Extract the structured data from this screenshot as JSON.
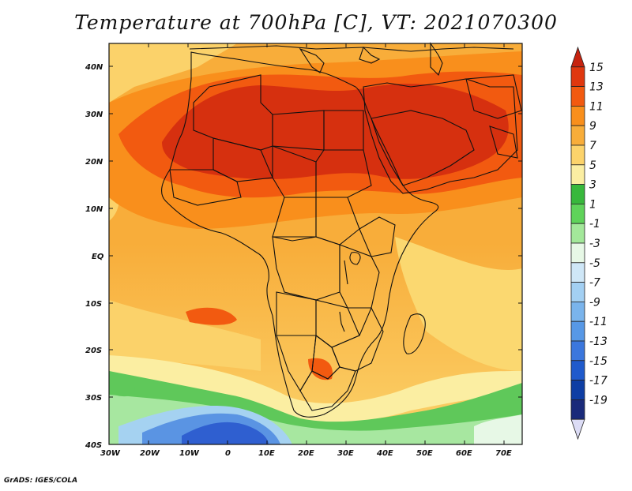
{
  "title": "Temperature at 700hPa [C], VT: 2021070300",
  "credit": "GrADS: IGES/COLA",
  "map": {
    "lat_labels": [
      "40N",
      "30N",
      "20N",
      "10N",
      "EQ",
      "10S",
      "20S",
      "30S",
      "40S"
    ],
    "lon_labels": [
      "30W",
      "20W",
      "10W",
      "0",
      "10E",
      "20E",
      "30E",
      "40E",
      "50E",
      "60E",
      "70E"
    ]
  },
  "colorbar": {
    "labels": [
      "15",
      "13",
      "11",
      "9",
      "7",
      "5",
      "3",
      "1",
      "-1",
      "-3",
      "-5",
      "-7",
      "-9",
      "-11",
      "-13",
      "-15",
      "-17",
      "-19"
    ],
    "colors": [
      "#c6230f",
      "#e0380f",
      "#f25a10",
      "#f98f1c",
      "#f8ad3a",
      "#fcd36b",
      "#fbeea2",
      "#38b83c",
      "#5fd35a",
      "#a3e89a",
      "#e7f8e6",
      "#cfe7f7",
      "#a3d0f3",
      "#7ab4ec",
      "#5798e6",
      "#3b77dd",
      "#1f5acc",
      "#0e3ea4",
      "#1a2a7a",
      "#dcdcf5"
    ]
  },
  "regions": [
    {
      "name": "south-cold-deep",
      "color": "#2f5fd0"
    },
    {
      "name": "south-cold-mid",
      "color": "#5a94e3"
    },
    {
      "name": "south-cold-light",
      "color": "#a5d2f1"
    },
    {
      "name": "south-green",
      "color": "#5fc85a"
    },
    {
      "name": "south-lightgreen",
      "color": "#a7e7a0"
    }
  ]
}
